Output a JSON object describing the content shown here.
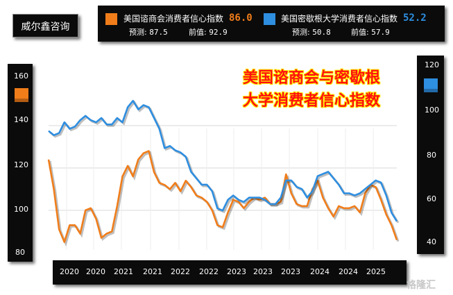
{
  "brand": "威尔鑫咨询",
  "title_line1": "美国谘商会与密歇根",
  "title_line2": "大学消费者信心指数",
  "legend": {
    "s1": {
      "name": "美国谘商会消费者信心指数",
      "value": "86.0",
      "forecast_label": "预测:",
      "forecast": "87.5",
      "prev_label": "前值:",
      "prev": "92.9",
      "color": "#f07d1a"
    },
    "s2": {
      "name": "美国密歇根大学消费者信心指数",
      "value": "52.2",
      "forecast_label": "预测:",
      "forecast": "50.8",
      "prev_label": "前值:",
      "prev": "57.9",
      "color": "#2e8ee0"
    }
  },
  "watermark": "格隆汇",
  "chart_data": {
    "type": "line",
    "x_tick_labels": [
      "2020",
      "2020",
      "2021",
      "2021",
      "2022",
      "2022",
      "2023",
      "2023",
      "2023",
      "2024",
      "2024",
      "2025"
    ],
    "left_axis": {
      "ticks": [
        160,
        140,
        120,
        100,
        80
      ],
      "ylim": [
        80,
        160
      ]
    },
    "right_axis": {
      "ticks": [
        120,
        100,
        80,
        60,
        40
      ],
      "ylim": [
        40,
        120
      ]
    },
    "grid": true,
    "series": [
      {
        "name": "美国谘商会消费者信心指数",
        "axis": "left",
        "color": "#f07d1a",
        "x": [
          "2019-10",
          "2019-11",
          "2019-12",
          "2020-01",
          "2020-02",
          "2020-03",
          "2020-04",
          "2020-05",
          "2020-06",
          "2020-07",
          "2020-08",
          "2020-09",
          "2020-10",
          "2020-11",
          "2020-12",
          "2021-01",
          "2021-02",
          "2021-03",
          "2021-04",
          "2021-05",
          "2021-06",
          "2021-07",
          "2021-08",
          "2021-09",
          "2021-10",
          "2021-11",
          "2021-12",
          "2022-01",
          "2022-02",
          "2022-03",
          "2022-04",
          "2022-05",
          "2022-06",
          "2022-07",
          "2022-08",
          "2022-09",
          "2022-10",
          "2022-11",
          "2022-12",
          "2023-01",
          "2023-02",
          "2023-03",
          "2023-04",
          "2023-05",
          "2023-06",
          "2023-07",
          "2023-08",
          "2023-09",
          "2023-10",
          "2023-11",
          "2023-12",
          "2024-01",
          "2024-02",
          "2024-03",
          "2024-04",
          "2024-05",
          "2024-06",
          "2024-07",
          "2024-08",
          "2024-09",
          "2024-10",
          "2024-11",
          "2024-12",
          "2025-01",
          "2025-02",
          "2025-03",
          "2025-04"
        ],
        "values": [
          124,
          110,
          91,
          90,
          98,
          93,
          89,
          100,
          101,
          96,
          89,
          89,
          90,
          102,
          116,
          121,
          116,
          124,
          127,
          128,
          118,
          113,
          112,
          110,
          113,
          109,
          114,
          111,
          107,
          106,
          104,
          100,
          93,
          92,
          99,
          105,
          104,
          101,
          104,
          106,
          105,
          106,
          103,
          103,
          104,
          117,
          108,
          103,
          102,
          102,
          110,
          114,
          106,
          101,
          97,
          102,
          101,
          101,
          102,
          99,
          108,
          112,
          111,
          105,
          98,
          93,
          86
        ],
        "display_offset": [
          0,
          0,
          0,
          -5,
          -5,
          0,
          0,
          0,
          0,
          0,
          -2,
          0,
          0,
          0,
          0,
          0,
          0,
          0,
          0,
          0,
          0,
          0,
          0,
          0,
          0,
          0,
          0,
          0,
          0,
          0,
          0,
          0,
          0,
          0,
          0,
          0,
          0,
          0,
          0,
          0,
          0,
          0,
          0,
          0,
          0,
          0,
          0,
          0,
          0,
          0,
          0,
          0,
          0,
          0,
          0,
          0,
          0,
          0,
          0,
          0,
          0,
          0,
          0,
          0,
          0,
          0,
          0
        ]
      },
      {
        "name": "美国密歇根大学消费者信心指数",
        "axis": "right",
        "color": "#2e8ee0",
        "x": [
          "2019-10",
          "2019-11",
          "2019-12",
          "2020-01",
          "2020-02",
          "2020-03",
          "2020-04",
          "2020-05",
          "2020-06",
          "2020-07",
          "2020-08",
          "2020-09",
          "2020-10",
          "2020-11",
          "2020-12",
          "2021-01",
          "2021-02",
          "2021-03",
          "2021-04",
          "2021-05",
          "2021-06",
          "2021-07",
          "2021-08",
          "2021-09",
          "2021-10",
          "2021-11",
          "2021-12",
          "2022-01",
          "2022-02",
          "2022-03",
          "2022-04",
          "2022-05",
          "2022-06",
          "2022-07",
          "2022-08",
          "2022-09",
          "2022-10",
          "2022-11",
          "2022-12",
          "2023-01",
          "2023-02",
          "2023-03",
          "2023-04",
          "2023-05",
          "2023-06",
          "2023-07",
          "2023-08",
          "2023-09",
          "2023-10",
          "2023-11",
          "2023-12",
          "2024-01",
          "2024-02",
          "2024-03",
          "2024-04",
          "2024-05",
          "2024-06",
          "2024-07",
          "2024-08",
          "2024-09",
          "2024-10",
          "2024-11",
          "2024-12",
          "2025-01",
          "2025-02",
          "2025-03",
          "2025-04"
        ],
        "values": [
          94,
          92,
          93,
          98,
          95,
          96,
          99,
          101,
          99,
          98,
          100,
          97,
          97,
          100,
          98,
          105,
          108,
          104,
          106,
          105,
          100,
          95,
          86,
          87,
          85,
          84,
          82,
          75,
          72,
          69,
          69,
          66,
          58,
          57,
          62,
          64,
          62,
          61,
          63,
          63,
          63,
          62,
          60,
          60,
          63,
          71,
          71,
          68,
          67,
          63,
          66,
          73,
          74,
          75,
          72,
          69,
          65,
          65,
          64,
          65,
          67,
          69,
          71,
          70,
          64,
          56,
          52
        ]
      }
    ]
  }
}
